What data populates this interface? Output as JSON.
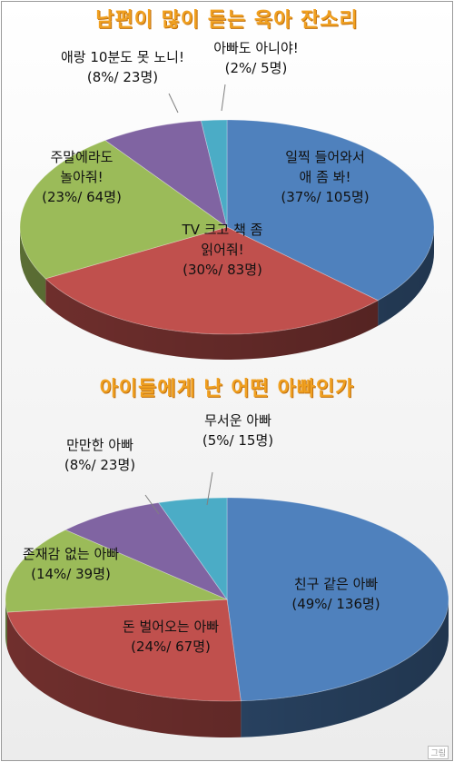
{
  "chart_data": [
    {
      "type": "pie",
      "title": "남편이 많이 듣는 육아 잔소리",
      "slices": [
        {
          "label": "일찍 들어와서 애 좀 봐!",
          "percent": 37,
          "count": 105,
          "color": "#4f81bd",
          "lines": [
            "일찍 들어와서",
            "애 좀 봐!",
            "(37%/ 105명)"
          ]
        },
        {
          "label": "TV 크고 책 좀 읽어줘!",
          "percent": 30,
          "count": 83,
          "color": "#c0504d",
          "lines": [
            "TV 크고 책 좀",
            "읽어줘!",
            "(30%/ 83명)"
          ]
        },
        {
          "label": "주말에라도 놀아줘!",
          "percent": 23,
          "count": 64,
          "color": "#9bbb59",
          "lines": [
            "주말에라도",
            "놀아줘!",
            "(23%/ 64명)"
          ]
        },
        {
          "label": "애랑 10분도 못 노니!",
          "percent": 8,
          "count": 23,
          "color": "#8064a2",
          "lines": [
            "애랑 10분도 못 노니!",
            "(8%/ 23명)"
          ]
        },
        {
          "label": "아빠도 아니야!",
          "percent": 2,
          "count": 5,
          "color": "#4bacc6",
          "lines": [
            "아빠도 아니야!",
            "(2%/ 5명)"
          ]
        }
      ]
    },
    {
      "type": "pie",
      "title": "아이들에게 난 어떤 아빠인가",
      "slices": [
        {
          "label": "친구 같은 아빠",
          "percent": 49,
          "count": 136,
          "color": "#4f81bd",
          "lines": [
            "친구 같은 아빠",
            "(49%/ 136명)"
          ]
        },
        {
          "label": "돈 벌어오는 아빠",
          "percent": 24,
          "count": 67,
          "color": "#c0504d",
          "lines": [
            "돈 벌어오는 아빠",
            "(24%/ 67명)"
          ]
        },
        {
          "label": "존재감 없는 아빠",
          "percent": 14,
          "count": 39,
          "color": "#9bbb59",
          "lines": [
            "존재감 없는 아빠",
            "(14%/ 39명)"
          ]
        },
        {
          "label": "만만한 아빠",
          "percent": 8,
          "count": 23,
          "color": "#8064a2",
          "lines": [
            "만만한 아빠",
            "(8%/ 23명)"
          ]
        },
        {
          "label": "무서운 아빠",
          "percent": 5,
          "count": 15,
          "color": "#4bacc6",
          "lines": [
            "무서운 아빠",
            "(5%/ 15명)"
          ]
        }
      ]
    }
  ],
  "watermark": "그림"
}
